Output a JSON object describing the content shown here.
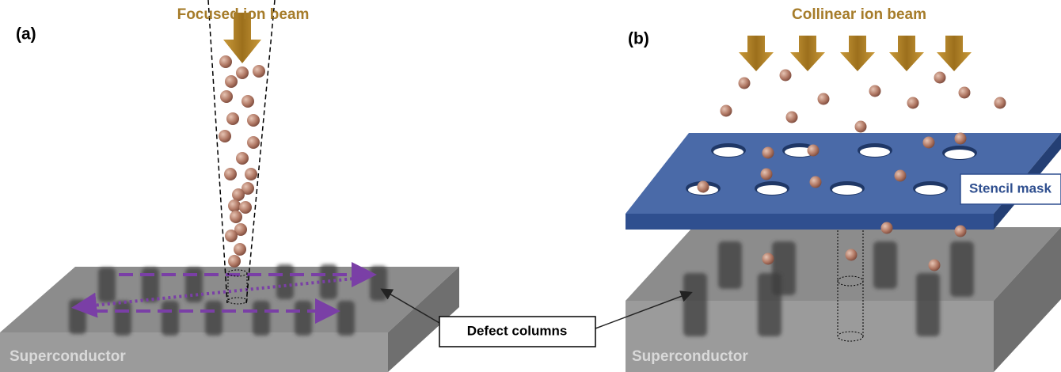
{
  "panel_a": {
    "label": "(a)",
    "beam_label": "Focused ion beam",
    "substrate_label": "Superconductor"
  },
  "panel_b": {
    "label": "(b)",
    "beam_label": "Collinear ion beam",
    "mask_label": "Stencil mask",
    "substrate_label": "Superconductor"
  },
  "callout": "Defect columns"
}
